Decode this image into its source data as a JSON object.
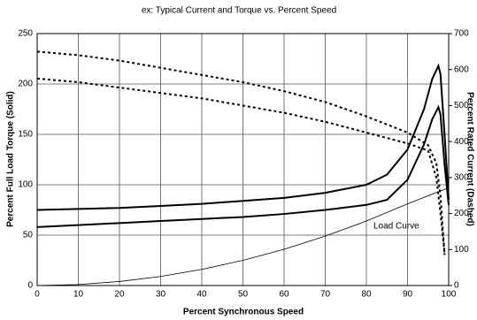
{
  "chart_data": {
    "type": "line",
    "title": "ex:  Typical Current and Torque vs. Percent Speed",
    "xlabel": "Percent Synchronous Speed",
    "ylabel": "Percent Full Load Torque (Solid)",
    "y2label": "Percent Rated Current (Dashed)",
    "annotation": "Load Curve",
    "xlim": [
      0,
      100
    ],
    "xticks": [
      0,
      10,
      20,
      30,
      40,
      50,
      60,
      70,
      80,
      90,
      100
    ],
    "ylim": [
      0,
      250
    ],
    "yticks": [
      0,
      50,
      100,
      150,
      200,
      250
    ],
    "y2lim": [
      0,
      700
    ],
    "y2ticks": [
      0,
      100,
      200,
      300,
      400,
      500,
      600,
      700
    ],
    "grid": true,
    "series": [
      {
        "color": "#000000",
        "dash": false,
        "width": 2,
        "axis": "y",
        "x": [
          0,
          10,
          20,
          30,
          40,
          50,
          60,
          70,
          80,
          85,
          90,
          94,
          96,
          97.5,
          98,
          99,
          100
        ],
        "values": [
          75,
          76,
          77,
          79,
          81,
          84,
          87,
          92,
          100,
          110,
          135,
          175,
          205,
          218,
          210,
          150,
          85
        ]
      },
      {
        "color": "#000000",
        "dash": false,
        "width": 2,
        "axis": "y",
        "x": [
          0,
          10,
          20,
          30,
          40,
          50,
          60,
          70,
          80,
          85,
          90,
          94,
          96,
          97.5,
          98,
          99,
          100
        ],
        "values": [
          58,
          60,
          62,
          64,
          66,
          68,
          71,
          75,
          80,
          85,
          105,
          140,
          165,
          177,
          170,
          120,
          80
        ]
      },
      {
        "color": "#000000",
        "dash": true,
        "width": 2,
        "axis": "y2",
        "x": [
          0,
          10,
          20,
          30,
          40,
          50,
          60,
          70,
          80,
          90,
          95,
          97,
          98,
          99
        ],
        "values": [
          650,
          640,
          625,
          605,
          585,
          565,
          540,
          510,
          470,
          425,
          390,
          340,
          250,
          85
        ]
      },
      {
        "color": "#000000",
        "dash": true,
        "width": 2,
        "axis": "y2",
        "x": [
          0,
          10,
          20,
          30,
          40,
          50,
          60,
          70,
          80,
          90,
          95,
          97,
          98,
          99
        ],
        "values": [
          575,
          565,
          550,
          535,
          520,
          500,
          480,
          455,
          425,
          395,
          375,
          300,
          200,
          90
        ]
      },
      {
        "color": "#000000",
        "dash": false,
        "width": 0.8,
        "axis": "y",
        "x": [
          0,
          10,
          20,
          30,
          40,
          50,
          60,
          70,
          80,
          90,
          100
        ],
        "values": [
          0,
          1,
          4,
          9,
          16,
          25,
          36,
          49,
          64,
          81,
          97
        ]
      }
    ]
  }
}
